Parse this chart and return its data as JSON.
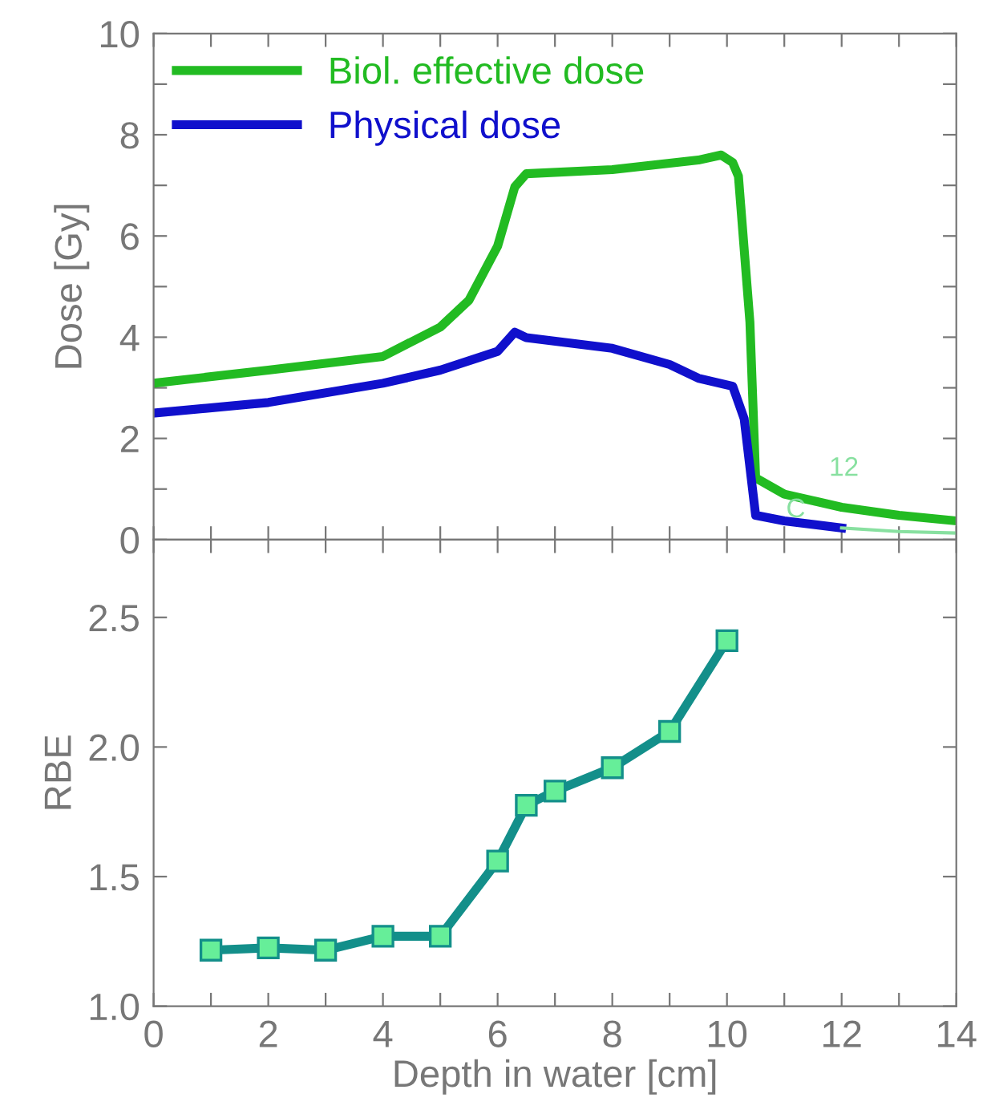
{
  "chart_data": [
    {
      "type": "line",
      "ylabel": "Dose [Gy]",
      "xlim": [
        0,
        14
      ],
      "ylim": [
        0,
        10
      ],
      "xticks": [
        {
          "value": 0,
          "label": null
        },
        {
          "value": 1,
          "label": null
        },
        {
          "value": 2,
          "label": null
        },
        {
          "value": 3,
          "label": null
        },
        {
          "value": 4,
          "label": null
        },
        {
          "value": 5,
          "label": null
        },
        {
          "value": 6,
          "label": null
        },
        {
          "value": 7,
          "label": null
        },
        {
          "value": 8,
          "label": null
        },
        {
          "value": 9,
          "label": null
        },
        {
          "value": 10,
          "label": null
        },
        {
          "value": 11,
          "label": null
        },
        {
          "value": 12,
          "label": null
        },
        {
          "value": 13,
          "label": null
        },
        {
          "value": 14,
          "label": null
        }
      ],
      "yticks": [
        0,
        {
          "value": 1,
          "label": null
        },
        2,
        {
          "value": 3,
          "label": null
        },
        4,
        {
          "value": 5,
          "label": null
        },
        6,
        {
          "value": 7,
          "label": null
        },
        8,
        {
          "value": 9,
          "label": null
        },
        10
      ],
      "tick_labels": "y",
      "legend": "top left",
      "grid": false,
      "series": [
        {
          "name": "Biol. effective dose",
          "color": "#22bb22",
          "x": [
            0,
            2,
            4,
            5,
            5.5,
            6,
            6.3,
            6.5,
            8,
            9.5,
            9.9,
            10.1,
            10.2,
            10.4,
            10.5,
            11,
            12,
            13,
            14
          ],
          "values": [
            3.09,
            3.35,
            3.62,
            4.2,
            4.73,
            5.8,
            6.97,
            7.23,
            7.31,
            7.5,
            7.6,
            7.45,
            7.18,
            4.3,
            1.22,
            0.9,
            0.64,
            0.48,
            0.37
          ]
        },
        {
          "name": "Physical dose",
          "color": "#1010cc",
          "x": [
            0,
            2,
            4,
            5,
            6,
            6.3,
            6.5,
            8,
            9,
            9.5,
            10.1,
            10.3,
            10.5,
            11,
            12
          ],
          "values": [
            2.5,
            2.71,
            3.09,
            3.35,
            3.72,
            4.1,
            3.99,
            3.78,
            3.46,
            3.19,
            3.03,
            2.39,
            0.48,
            0.37,
            0.23
          ]
        },
        {
          "color": "#88e0a0",
          "x": [
            12,
            13,
            14
          ],
          "values": [
            0.23,
            0.16,
            0.13
          ]
        }
      ],
      "annotations": [
        "12",
        "C"
      ]
    },
    {
      "type": "line",
      "xlabel": "Depth in water [cm]",
      "ylabel": "RBE",
      "xlim": [
        0,
        14
      ],
      "ylim": [
        1.0,
        2.8
      ],
      "xticks": [
        0,
        {
          "value": 1,
          "label": null
        },
        2,
        {
          "value": 3,
          "label": null
        },
        4,
        {
          "value": 5,
          "label": null
        },
        6,
        {
          "value": 7,
          "label": null
        },
        8,
        {
          "value": 9,
          "label": null
        },
        10,
        {
          "value": 11,
          "label": null
        },
        12,
        {
          "value": 13,
          "label": null
        },
        14
      ],
      "yticks": [
        {
          "value": 1.0,
          "label": "1.0"
        },
        {
          "value": 1.5,
          "label": "1.5"
        },
        {
          "value": 2.0,
          "label": "2.0"
        },
        {
          "value": 2.5,
          "label": "2.5"
        }
      ],
      "grid": false,
      "marker": "square",
      "series": [
        {
          "color": "#138f8a",
          "x": [
            1,
            2,
            3,
            4,
            5,
            6,
            6.5,
            7,
            8,
            9,
            10
          ],
          "values": [
            1.216,
            1.225,
            1.216,
            1.27,
            1.27,
            1.56,
            1.775,
            1.83,
            1.92,
            2.06,
            2.41
          ]
        }
      ]
    }
  ]
}
